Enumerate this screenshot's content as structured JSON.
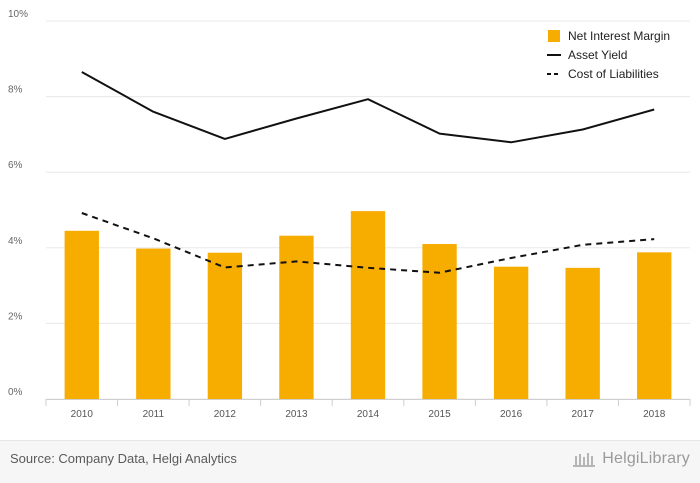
{
  "chart_data": {
    "type": "bar",
    "categories": [
      "2010",
      "2011",
      "2012",
      "2013",
      "2014",
      "2015",
      "2016",
      "2017",
      "2018"
    ],
    "series": [
      {
        "name": "Net Interest Margin",
        "kind": "bar",
        "color": "#f7ac00",
        "values": [
          4.45,
          3.98,
          3.87,
          4.32,
          4.97,
          4.1,
          3.5,
          3.47,
          3.88
        ]
      },
      {
        "name": "Asset Yield",
        "kind": "line",
        "style": "solid",
        "color": "#111111",
        "values": [
          8.65,
          7.6,
          6.88,
          7.42,
          7.93,
          7.02,
          6.79,
          7.13,
          7.66
        ]
      },
      {
        "name": "Cost of Liabilities",
        "kind": "line",
        "style": "dashed",
        "color": "#111111",
        "values": [
          4.92,
          4.25,
          3.48,
          3.64,
          3.47,
          3.34,
          3.73,
          4.08,
          4.23
        ]
      }
    ],
    "title": "",
    "xlabel": "",
    "ylabel": "",
    "ylim": [
      0,
      10
    ],
    "yticks": [
      0,
      2,
      4,
      6,
      8,
      10
    ],
    "ytick_suffix": "%",
    "grid": true,
    "legend_position": "top-right"
  },
  "footer": {
    "source": "Source: Company Data, Helgi Analytics",
    "brand": "HelgiLibrary",
    "brand_icon": "library-building-icon"
  }
}
